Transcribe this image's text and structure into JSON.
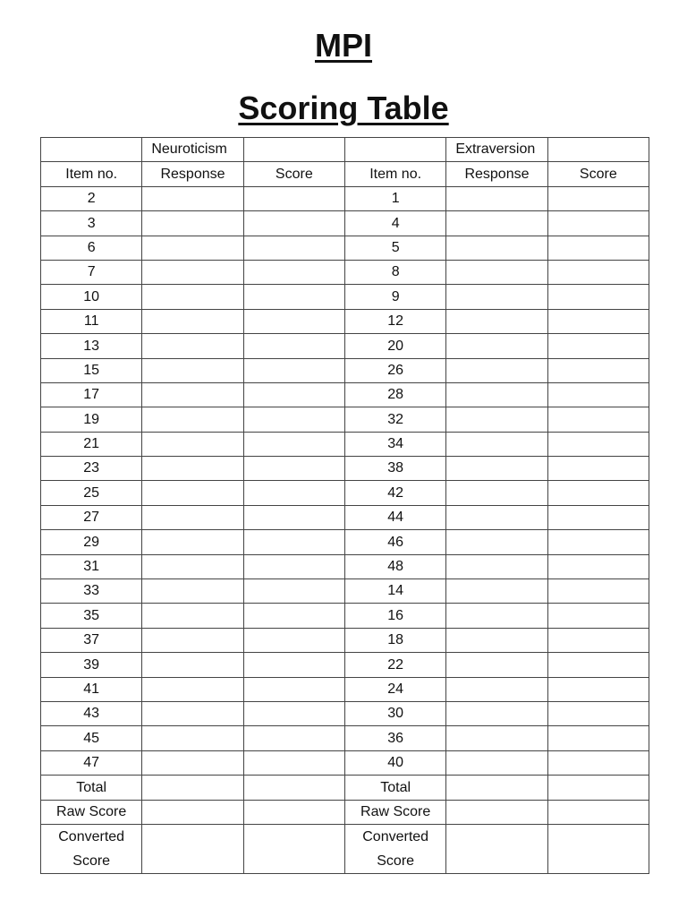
{
  "header": {
    "title": "MPI",
    "subtitle": "Scoring Table"
  },
  "table": {
    "groups": {
      "left": "Neuroticism",
      "right": "Extraversion"
    },
    "columns": [
      "Item no.",
      "Response",
      "Score"
    ],
    "rows": [
      {
        "left": 2,
        "right": 1
      },
      {
        "left": 3,
        "right": 4
      },
      {
        "left": 6,
        "right": 5
      },
      {
        "left": 7,
        "right": 8
      },
      {
        "left": 10,
        "right": 9
      },
      {
        "left": 11,
        "right": 12
      },
      {
        "left": 13,
        "right": 20
      },
      {
        "left": 15,
        "right": 26
      },
      {
        "left": 17,
        "right": 28
      },
      {
        "left": 19,
        "right": 32
      },
      {
        "left": 21,
        "right": 34
      },
      {
        "left": 23,
        "right": 38
      },
      {
        "left": 25,
        "right": 42
      },
      {
        "left": 27,
        "right": 44
      },
      {
        "left": 29,
        "right": 46
      },
      {
        "left": 31,
        "right": 48
      },
      {
        "left": 33,
        "right": 14
      },
      {
        "left": 35,
        "right": 16
      },
      {
        "left": 37,
        "right": 18
      },
      {
        "left": 39,
        "right": 22
      },
      {
        "left": 41,
        "right": 24
      },
      {
        "left": 43,
        "right": 30
      },
      {
        "left": 45,
        "right": 36
      },
      {
        "left": 47,
        "right": 40
      }
    ],
    "footer": [
      {
        "left": "Total",
        "right": "Total"
      },
      {
        "left": "Raw Score",
        "right": "Raw Score"
      },
      {
        "left": "Converted Score",
        "right": "Converted Score"
      }
    ]
  }
}
